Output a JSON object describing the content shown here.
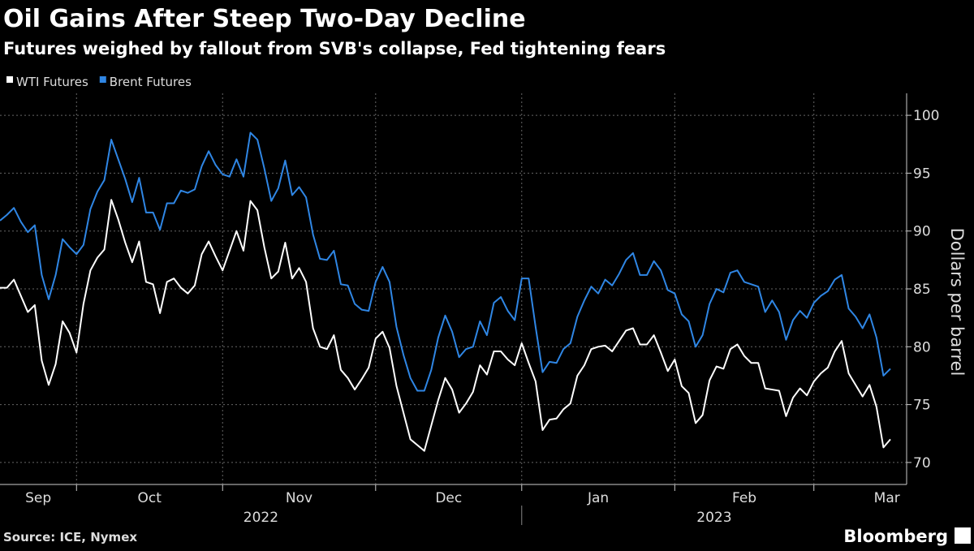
{
  "chart_data": {
    "type": "line",
    "title": "Oil Gains After Steep Two-Day Decline",
    "subtitle": "Futures weighed by fallout from SVB's collapse, Fed tightening fears",
    "source": "Source: ICE, Nymex",
    "brand": "Bloomberg",
    "y_label": "Dollars per barrel",
    "legend": "top-left",
    "grid": true,
    "years": [
      "2022",
      "2023"
    ],
    "categories": [
      "Sep",
      null,
      null,
      null,
      null,
      null,
      null,
      null,
      null,
      null,
      null,
      "Oct",
      null,
      null,
      null,
      null,
      null,
      null,
      null,
      null,
      null,
      null,
      null,
      null,
      null,
      null,
      null,
      null,
      null,
      null,
      null,
      null,
      "Nov",
      null,
      null,
      null,
      null,
      null,
      null,
      null,
      null,
      null,
      null,
      null,
      null,
      null,
      null,
      null,
      null,
      null,
      null,
      null,
      null,
      null,
      "Dec",
      null,
      null,
      null,
      null,
      null,
      null,
      null,
      null,
      null,
      null,
      null,
      null,
      null,
      null,
      null,
      null,
      null,
      null,
      null,
      null,
      "Jan",
      null,
      null,
      null,
      null,
      null,
      null,
      null,
      null,
      null,
      null,
      null,
      null,
      null,
      null,
      null,
      null,
      null,
      null,
      null,
      null,
      null,
      "Feb",
      null,
      null,
      null,
      null,
      null,
      null,
      null,
      null,
      null,
      null,
      null,
      null,
      null,
      null,
      null,
      null,
      null,
      null,
      null,
      "Mar",
      null,
      null,
      null,
      null,
      null,
      null,
      null,
      null,
      null,
      null,
      null
    ],
    "series": [
      {
        "name": "WTI Futures",
        "color": "#ffffff",
        "values": [
          85.1,
          85.1,
          85.8,
          84.4,
          83,
          83.6,
          78.8,
          76.7,
          78.5,
          82.2,
          81.2,
          79.5,
          83.7,
          86.6,
          87.7,
          88.4,
          92.7,
          91,
          89,
          87.3,
          89.1,
          85.6,
          85.4,
          82.9,
          85.6,
          85.9,
          85.1,
          84.6,
          85.3,
          88,
          89.1,
          87.8,
          86.6,
          88.3,
          90,
          88.3,
          92.6,
          91.8,
          88.6,
          85.9,
          86.5,
          89,
          85.9,
          86.8,
          85.6,
          81.6,
          80,
          79.8,
          81,
          78,
          77.3,
          76.3,
          77.2,
          78.2,
          80.7,
          81.3,
          79.9,
          76.6,
          74.3,
          72,
          71.5,
          71,
          73.2,
          75.4,
          77.3,
          76.3,
          74.3,
          75.1,
          76.1,
          78.4,
          77.6,
          79.6,
          79.6,
          78.9,
          78.4,
          80.3,
          78.6,
          77,
          72.8,
          73.7,
          73.8,
          74.6,
          75.1,
          77.5,
          78.4,
          79.8,
          80,
          80.1,
          79.6,
          80.5,
          81.4,
          81.6,
          80.2,
          80.2,
          81,
          79.5,
          77.9,
          78.9,
          76.6,
          76,
          73.4,
          74.1,
          77.1,
          78.3,
          78.1,
          79.8,
          80.2,
          79.2,
          78.6,
          78.6,
          76.4,
          76.3,
          76.2,
          74,
          75.6,
          76.4,
          75.8,
          77,
          77.7,
          78.2,
          79.6,
          80.5,
          77.7,
          76.7,
          75.7,
          76.7,
          74.8,
          71.3,
          72
        ]
      },
      {
        "name": "Brent Futures",
        "color": "#2f86e4",
        "values": [
          90.9,
          91.4,
          92,
          90.8,
          89.9,
          90.5,
          86.2,
          84.1,
          86.2,
          89.3,
          88.6,
          88,
          88.8,
          91.9,
          93.4,
          94.4,
          97.9,
          96.2,
          94.5,
          92.5,
          94.6,
          91.6,
          91.6,
          90.1,
          92.4,
          92.4,
          93.5,
          93.3,
          93.6,
          95.6,
          96.9,
          95.7,
          94.9,
          94.7,
          96.2,
          94.7,
          98.5,
          97.9,
          95.4,
          92.6,
          93.7,
          96.1,
          93.1,
          93.8,
          92.9,
          89.7,
          87.6,
          87.5,
          88.3,
          85.4,
          85.3,
          83.7,
          83.2,
          83.1,
          85.6,
          86.9,
          85.6,
          81.7,
          79.3,
          77.3,
          76.2,
          76.2,
          78,
          80.8,
          82.7,
          81.3,
          79.1,
          79.8,
          80,
          82.2,
          81,
          83.8,
          84.3,
          83.1,
          82.3,
          85.9,
          85.9,
          81.7,
          77.8,
          78.7,
          78.6,
          79.8,
          80.3,
          82.6,
          84,
          85.2,
          84.6,
          85.8,
          85.3,
          86.3,
          87.5,
          88.1,
          86.2,
          86.2,
          87.4,
          86.6,
          84.9,
          84.6,
          82.8,
          82.2,
          80,
          81,
          83.7,
          85,
          84.7,
          86.4,
          86.6,
          85.6,
          85.4,
          85.2,
          83,
          84,
          83,
          80.6,
          82.3,
          83.1,
          82.5,
          83.8,
          84.4,
          84.8,
          85.8,
          86.2,
          83.3,
          82.6,
          81.6,
          82.8,
          80.8,
          77.5,
          78.1
        ]
      }
    ],
    "ylim": [
      68.1,
      101.9
    ],
    "yticks": [
      70,
      75,
      80,
      85,
      90,
      95,
      100
    ]
  }
}
